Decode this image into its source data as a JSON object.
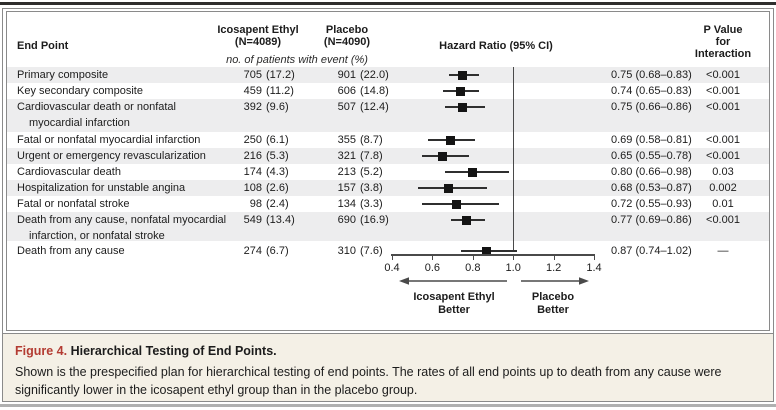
{
  "header": {
    "endpoint_label": "End Point",
    "ie_name": "Icosapent Ethyl",
    "ie_n": "(N=4089)",
    "placebo_name": "Placebo",
    "placebo_n": "(N=4090)",
    "subnote": "no. of patients with event (%)",
    "hr_label": "Hazard Ratio (95% CI)",
    "p_label_line1": "P Value for",
    "p_label_line2": "Interaction"
  },
  "rows": [
    {
      "label": "Primary composite",
      "label2": "",
      "ie_n": "705",
      "ie_pct": "(17.2)",
      "pb_n": "901",
      "pb_pct": "(22.0)",
      "hr_text": "0.75 (0.68–0.83)",
      "p": "<0.001",
      "shaded": true
    },
    {
      "label": "Key secondary composite",
      "label2": "",
      "ie_n": "459",
      "ie_pct": "(11.2)",
      "pb_n": "606",
      "pb_pct": "(14.8)",
      "hr_text": "0.74 (0.65–0.83)",
      "p": "<0.001",
      "shaded": false
    },
    {
      "label": "Cardiovascular death or nonfatal",
      "label2": "myocardial infarction",
      "ie_n": "392",
      "ie_pct": "(9.6)",
      "pb_n": "507",
      "pb_pct": "(12.4)",
      "hr_text": "0.75 (0.66–0.86)",
      "p": "<0.001",
      "shaded": true
    },
    {
      "label": "Fatal or nonfatal myocardial infarction",
      "label2": "",
      "ie_n": "250",
      "ie_pct": "(6.1)",
      "pb_n": "355",
      "pb_pct": "(8.7)",
      "hr_text": "0.69 (0.58–0.81)",
      "p": "<0.001",
      "shaded": false
    },
    {
      "label": "Urgent or emergency revascularization",
      "label2": "",
      "ie_n": "216",
      "ie_pct": "(5.3)",
      "pb_n": "321",
      "pb_pct": "(7.8)",
      "hr_text": "0.65 (0.55–0.78)",
      "p": "<0.001",
      "shaded": true
    },
    {
      "label": "Cardiovascular death",
      "label2": "",
      "ie_n": "174",
      "ie_pct": "(4.3)",
      "pb_n": "213",
      "pb_pct": "(5.2)",
      "hr_text": "0.80 (0.66–0.98)",
      "p": "0.03",
      "shaded": false
    },
    {
      "label": "Hospitalization for unstable angina",
      "label2": "",
      "ie_n": "108",
      "ie_pct": "(2.6)",
      "pb_n": "157",
      "pb_pct": "(3.8)",
      "hr_text": "0.68 (0.53–0.87)",
      "p": "0.002",
      "shaded": true
    },
    {
      "label": "Fatal or nonfatal stroke",
      "label2": "",
      "ie_n": "98",
      "ie_pct": "(2.4)",
      "pb_n": "134",
      "pb_pct": "(3.3)",
      "hr_text": "0.72 (0.55–0.93)",
      "p": "0.01",
      "shaded": false
    },
    {
      "label": "Death from any cause, nonfatal myocardial",
      "label2": "infarction, or nonfatal stroke",
      "ie_n": "549",
      "ie_pct": "(13.4)",
      "pb_n": "690",
      "pb_pct": "(16.9)",
      "hr_text": "0.77 (0.69–0.86)",
      "p": "<0.001",
      "shaded": true
    },
    {
      "label": "Death from any cause",
      "label2": "",
      "ie_n": "274",
      "ie_pct": "(6.7)",
      "pb_n": "310",
      "pb_pct": "(7.6)",
      "hr_text": "0.87 (0.74–1.02)",
      "p": "—",
      "shaded": false
    }
  ],
  "axis": {
    "tick_labels": [
      "0.4",
      "0.6",
      "0.8",
      "1.0",
      "1.2",
      "1.4"
    ],
    "tick_values": [
      0.4,
      0.6,
      0.8,
      1.0,
      1.2,
      1.4
    ],
    "reference_value": 1.0,
    "better_left_line1": "Icosapent Ethyl",
    "better_left_line2": "Better",
    "better_right_line1": "Placebo",
    "better_right_line2": "Better"
  },
  "caption": {
    "figure_label": "Figure 4.",
    "title": "Hierarchical Testing of End Points.",
    "body": "Shown is the prespecified plan for hierarchical testing of end points. The rates of all end points up to death from any cause were significantly lower in the icosapent ethyl group than in the placebo group."
  },
  "colors": {
    "figure_label_red": "#b33b32",
    "row_band_gray": "#ededee",
    "marker_black": "#141414",
    "caption_cream": "#f4f0e6"
  },
  "chart_data": {
    "type": "scatter",
    "subtype": "forest-plot",
    "title": "Hazard Ratio (95% CI)",
    "xlim": [
      0.4,
      1.4
    ],
    "x_ticks": [
      0.4,
      0.6,
      0.8,
      1.0,
      1.2,
      1.4
    ],
    "reference_line": 1.0,
    "legend_position": "none",
    "grid": false,
    "categories": [
      "Primary composite",
      "Key secondary composite",
      "Cardiovascular death or nonfatal myocardial infarction",
      "Fatal or nonfatal myocardial infarction",
      "Urgent or emergency revascularization",
      "Cardiovascular death",
      "Hospitalization for unstable angina",
      "Fatal or nonfatal stroke",
      "Death from any cause, nonfatal myocardial infarction, or nonfatal stroke",
      "Death from any cause"
    ],
    "series": [
      {
        "name": "Hazard Ratio",
        "values": [
          0.75,
          0.74,
          0.75,
          0.69,
          0.65,
          0.8,
          0.68,
          0.72,
          0.77,
          0.87
        ]
      },
      {
        "name": "CI lower",
        "values": [
          0.68,
          0.65,
          0.66,
          0.58,
          0.55,
          0.66,
          0.53,
          0.55,
          0.69,
          0.74
        ]
      },
      {
        "name": "CI upper",
        "values": [
          0.83,
          0.83,
          0.86,
          0.81,
          0.78,
          0.98,
          0.87,
          0.93,
          0.86,
          1.02
        ]
      },
      {
        "name": "Icosapent Ethyl n (%)",
        "values": [
          705,
          459,
          392,
          250,
          216,
          174,
          108,
          98,
          549,
          274
        ]
      },
      {
        "name": "Icosapent Ethyl %",
        "values": [
          17.2,
          11.2,
          9.6,
          6.1,
          5.3,
          4.3,
          2.6,
          2.4,
          13.4,
          6.7
        ]
      },
      {
        "name": "Placebo n",
        "values": [
          901,
          606,
          507,
          355,
          321,
          213,
          157,
          134,
          690,
          310
        ]
      },
      {
        "name": "Placebo %",
        "values": [
          22.0,
          14.8,
          12.4,
          8.7,
          7.8,
          5.2,
          3.8,
          3.3,
          16.9,
          7.6
        ]
      }
    ],
    "p_values_interaction": [
      "<0.001",
      "<0.001",
      "<0.001",
      "<0.001",
      "<0.001",
      "0.03",
      "0.002",
      "0.01",
      "<0.001",
      "—"
    ],
    "xlabel": "",
    "ylabel": "",
    "annotations": [
      "Icosapent Ethyl Better",
      "Placebo Better"
    ]
  }
}
